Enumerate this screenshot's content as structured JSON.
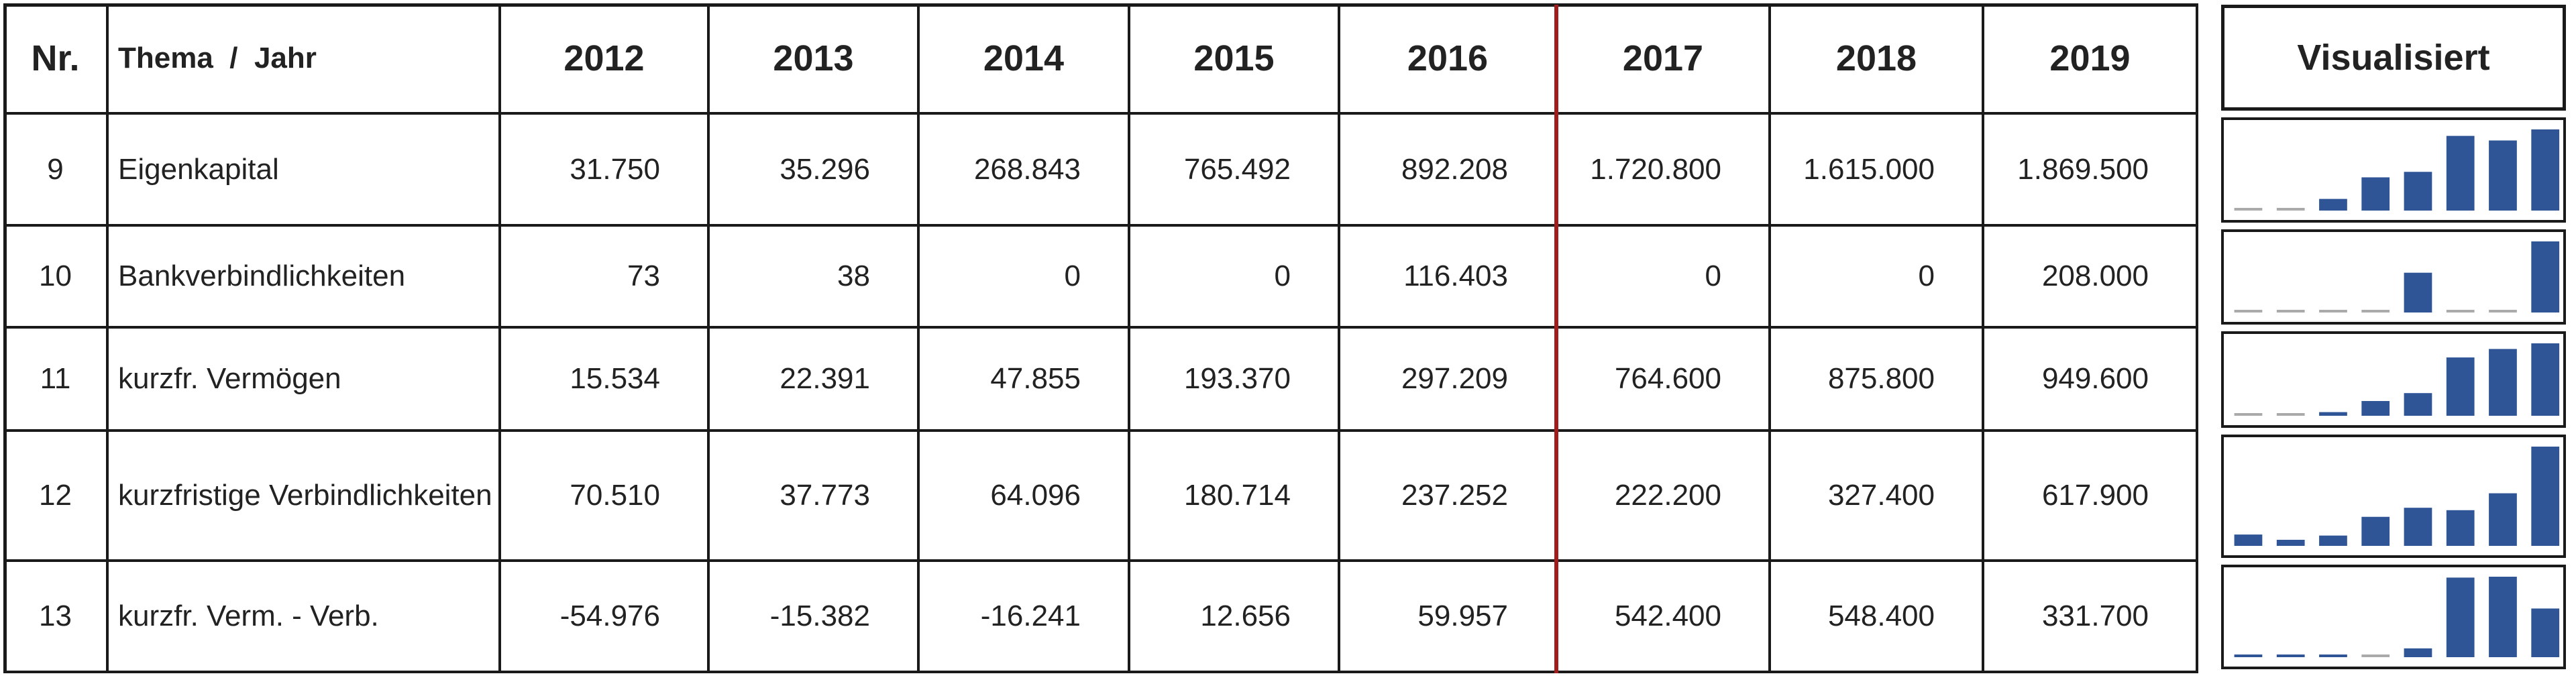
{
  "header": {
    "nr": "Nr.",
    "topic": "Thema  /  Jahr",
    "years": [
      2012,
      2013,
      2014,
      2015,
      2016,
      2017,
      2018,
      2019
    ],
    "visual": "Visualisiert"
  },
  "rows": [
    {
      "nr": 9,
      "label": "Eigenkapital",
      "values": [
        31750,
        35296,
        268843,
        765492,
        892208,
        1720800,
        1615000,
        1869500
      ],
      "value_labels": [
        "31.750",
        "35.296",
        "268.843",
        "765.492",
        "892.208",
        "1.720.800",
        "1.615.000",
        "1.869.500"
      ]
    },
    {
      "nr": 10,
      "label": "Bankverbindlichkeiten",
      "values": [
        73,
        38,
        0,
        0,
        116403,
        0,
        0,
        208000
      ],
      "value_labels": [
        "73",
        "38",
        "0",
        "0",
        "116.403",
        "0",
        "0",
        "208.000"
      ]
    },
    {
      "nr": 11,
      "label": "kurzfr. Vermögen",
      "values": [
        15534,
        22391,
        47855,
        193370,
        297209,
        764600,
        875800,
        949600
      ],
      "value_labels": [
        "15.534",
        "22.391",
        "47.855",
        "193.370",
        "297.209",
        "764.600",
        "875.800",
        "949.600"
      ]
    },
    {
      "nr": 12,
      "label": "kurzfristige Verbindlichkeiten",
      "values": [
        70510,
        37773,
        64096,
        180714,
        237252,
        222200,
        327400,
        617900
      ],
      "value_labels": [
        "70.510",
        "37.773",
        "64.096",
        "180.714",
        "237.252",
        "222.200",
        "327.400",
        "617.900"
      ]
    },
    {
      "nr": 13,
      "label": "kurzfr. Verm. - Verb.",
      "values": [
        -54976,
        -15382,
        -16241,
        12656,
        59957,
        542400,
        548400,
        331700
      ],
      "value_labels": [
        "-54.976",
        "-15.382",
        "-16.241",
        "12.656",
        "59.957",
        "542.400",
        "548.400",
        "331.700"
      ]
    }
  ]
}
